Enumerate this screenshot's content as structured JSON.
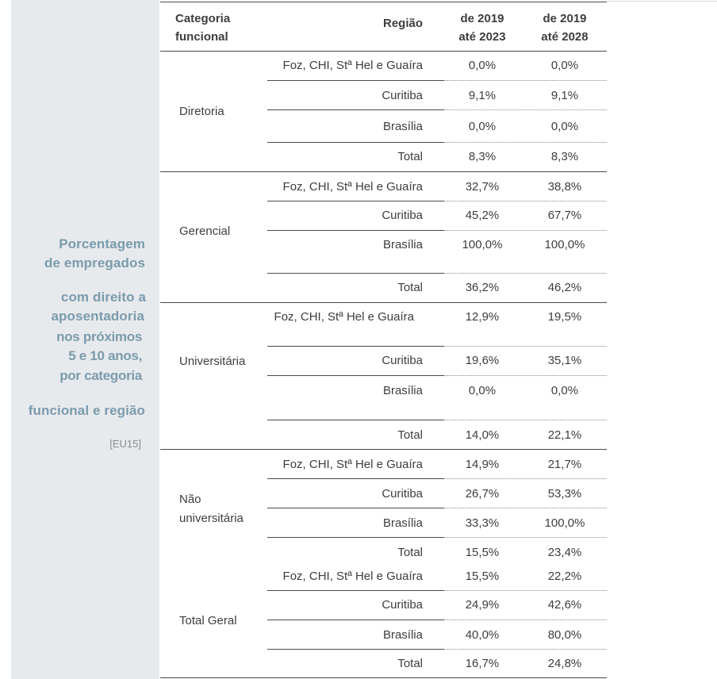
{
  "sidebar": {
    "title_lines": [
      "Porcentagem",
      "de empregados",
      "com direito a",
      "aposentadoria",
      "nos próximos",
      "5 e 10 anos,",
      "por categoria",
      "funcional e região"
    ],
    "code": "[EU15]"
  },
  "table": {
    "headers": {
      "category": "Categoria funcional",
      "region": "Região",
      "period1": "de 2019 até 2023",
      "period2": "de 2019 até 2028"
    },
    "groups": [
      {
        "category": "Diretoria",
        "rows": [
          {
            "region": "Foz, CHI, Stª Hel e Guaíra",
            "v1": "0,0%",
            "v2": "0,0%"
          },
          {
            "region": "Curitiba",
            "v1": "9,1%",
            "v2": "9,1%"
          },
          {
            "region": "Brasília",
            "v1": "0,0%",
            "v2": "0,0%"
          },
          {
            "region": "Total",
            "v1": "8,3%",
            "v2": "8,3%"
          }
        ]
      },
      {
        "category": "Gerencial",
        "rows": [
          {
            "region": "Foz, CHI, Stª Hel e Guaíra",
            "v1": "32,7%",
            "v2": "38,8%"
          },
          {
            "region": "Curitiba",
            "v1": "45,2%",
            "v2": "67,7%"
          },
          {
            "region": "Brasília",
            "v1": "100,0%",
            "v2": "100,0%"
          },
          {
            "region": "Total",
            "v1": "36,2%",
            "v2": "46,2%"
          }
        ]
      },
      {
        "category": "Universitária",
        "rows": [
          {
            "region": "Foz, CHI, Stª Hel e Guaíra",
            "v1": "12,9%",
            "v2": "19,5%"
          },
          {
            "region": "Curitiba",
            "v1": "19,6%",
            "v2": "35,1%"
          },
          {
            "region": "Brasília",
            "v1": "0,0%",
            "v2": "0,0%"
          },
          {
            "region": "Total",
            "v1": "14,0%",
            "v2": "22,1%"
          }
        ]
      },
      {
        "category": "Não universitária",
        "rows": [
          {
            "region": "Foz, CHI, Stª Hel e Guaíra",
            "v1": "14,9%",
            "v2": "21,7%"
          },
          {
            "region": "Curitiba",
            "v1": "26,7%",
            "v2": "53,3%"
          },
          {
            "region": "Brasília",
            "v1": "33,3%",
            "v2": "100,0%"
          },
          {
            "region": "Total",
            "v1": "15,5%",
            "v2": "23,4%"
          }
        ]
      },
      {
        "category": "Total Geral",
        "rows": [
          {
            "region": "Foz, CHI, Stª Hel e Guaíra",
            "v1": "15,5%",
            "v2": "22,2%"
          },
          {
            "region": "Curitiba",
            "v1": "24,9%",
            "v2": "42,6%"
          },
          {
            "region": "Brasília",
            "v1": "40,0%",
            "v2": "80,0%"
          },
          {
            "region": "Total",
            "v1": "16,7%",
            "v2": "24,8%"
          }
        ]
      }
    ]
  }
}
